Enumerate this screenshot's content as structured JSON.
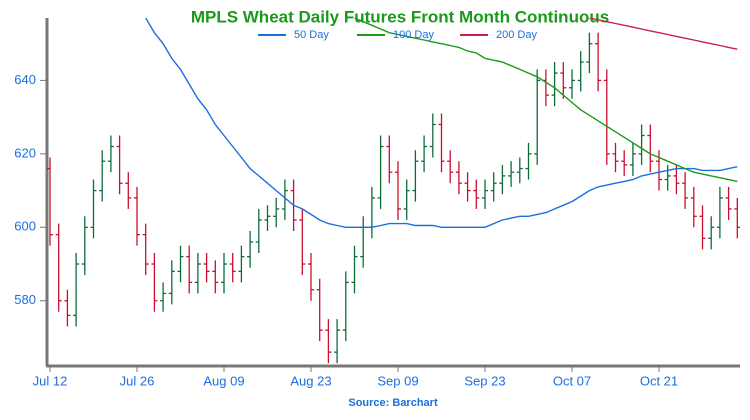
{
  "chart_data": {
    "type": "ohlc",
    "title": "MPLS Wheat Daily Futures Front Month Continuous",
    "source": "Source: Barchart",
    "categories": [
      "Jul 12",
      null,
      null,
      null,
      null,
      null,
      null,
      null,
      null,
      null,
      "Jul 26",
      null,
      null,
      null,
      null,
      null,
      null,
      null,
      null,
      null,
      "Aug 09",
      null,
      null,
      null,
      null,
      null,
      null,
      null,
      null,
      null,
      "Aug 23",
      null,
      null,
      null,
      null,
      null,
      null,
      null,
      null,
      null,
      "Sep 09",
      null,
      null,
      null,
      null,
      null,
      null,
      null,
      null,
      null,
      "Sep 23",
      null,
      null,
      null,
      null,
      null,
      null,
      null,
      null,
      null,
      "Oct 07",
      null,
      null,
      null,
      null,
      null,
      null,
      null,
      null,
      null,
      "Oct 21",
      null,
      null,
      null,
      null,
      null,
      null,
      null,
      null,
      null
    ],
    "open": [
      616,
      598,
      580,
      576,
      590,
      600,
      610,
      618,
      622,
      612,
      608,
      598,
      590,
      580,
      582,
      588,
      592,
      585,
      590,
      588,
      585,
      590,
      588,
      592,
      596,
      602,
      603,
      605,
      610,
      602,
      590,
      583,
      572,
      566,
      572,
      585,
      592,
      600,
      608,
      622,
      615,
      605,
      610,
      618,
      622,
      628,
      618,
      615,
      612,
      610,
      608,
      610,
      612,
      614,
      615,
      616,
      620,
      640,
      636,
      642,
      638,
      640,
      645,
      650,
      640,
      620,
      618,
      617,
      620,
      625,
      618,
      613,
      614,
      612,
      608,
      603,
      597,
      600,
      608,
      605
    ],
    "high": [
      619,
      601,
      583,
      593,
      603,
      613,
      621,
      625,
      625,
      615,
      611,
      601,
      593,
      585,
      591,
      595,
      595,
      593,
      593,
      591,
      593,
      593,
      595,
      599,
      605,
      606,
      608,
      613,
      613,
      605,
      593,
      586,
      575,
      575,
      588,
      595,
      603,
      611,
      625,
      625,
      618,
      613,
      621,
      625,
      631,
      631,
      621,
      618,
      615,
      613,
      613,
      615,
      617,
      618,
      619,
      623,
      643,
      643,
      645,
      645,
      643,
      648,
      653,
      653,
      643,
      623,
      621,
      623,
      628,
      628,
      621,
      617,
      617,
      615,
      611,
      606,
      603,
      611,
      611,
      608
    ],
    "low": [
      595,
      577,
      573,
      573,
      587,
      597,
      607,
      615,
      609,
      605,
      595,
      587,
      577,
      577,
      579,
      585,
      582,
      582,
      585,
      582,
      582,
      585,
      585,
      589,
      593,
      599,
      600,
      602,
      599,
      587,
      580,
      569,
      563,
      563,
      569,
      582,
      589,
      597,
      605,
      612,
      602,
      602,
      607,
      615,
      619,
      615,
      612,
      609,
      607,
      605,
      605,
      607,
      609,
      611,
      612,
      613,
      617,
      633,
      633,
      635,
      635,
      637,
      642,
      637,
      617,
      615,
      614,
      614,
      617,
      615,
      610,
      610,
      609,
      605,
      600,
      594,
      594,
      597,
      602,
      597
    ],
    "close": [
      598,
      580,
      576,
      590,
      600,
      610,
      618,
      622,
      612,
      608,
      598,
      590,
      580,
      582,
      588,
      592,
      585,
      590,
      588,
      585,
      590,
      588,
      592,
      596,
      602,
      603,
      605,
      610,
      602,
      590,
      583,
      572,
      566,
      572,
      585,
      592,
      600,
      608,
      622,
      615,
      605,
      610,
      618,
      622,
      628,
      618,
      615,
      612,
      610,
      608,
      610,
      612,
      614,
      615,
      616,
      620,
      640,
      636,
      642,
      638,
      640,
      645,
      650,
      640,
      620,
      618,
      617,
      620,
      625,
      618,
      613,
      614,
      612,
      608,
      603,
      597,
      600,
      608,
      605,
      600
    ],
    "up_color": "#0d6b3a",
    "down_color": "#c8102e",
    "series": [
      {
        "name": "50 Day",
        "color": "#1a6fe0",
        "values": [
          null,
          null,
          null,
          null,
          null,
          null,
          null,
          null,
          null,
          null,
          null,
          657,
          653,
          650,
          646,
          643,
          639,
          635,
          632,
          628,
          625,
          622,
          619,
          616,
          614,
          612,
          610,
          608,
          606,
          605,
          603.5,
          602,
          601,
          600.5,
          600,
          600,
          600,
          600,
          600.5,
          601,
          601,
          601,
          600.5,
          600.5,
          600.5,
          600,
          600,
          600,
          600,
          600,
          600,
          601,
          602,
          602.5,
          603,
          603,
          603.5,
          604,
          605,
          606,
          607,
          608.5,
          610,
          611,
          611.5,
          612,
          612.5,
          613,
          614,
          614.5,
          615,
          615.5,
          616,
          616,
          616,
          615.5,
          615.5,
          615.5,
          616,
          616.5
        ]
      },
      {
        "name": "100 Day",
        "color": "#1a9a1a",
        "values": [
          null,
          null,
          null,
          null,
          null,
          null,
          null,
          null,
          null,
          null,
          null,
          null,
          null,
          null,
          null,
          null,
          null,
          null,
          null,
          null,
          null,
          null,
          null,
          null,
          null,
          null,
          null,
          null,
          null,
          null,
          null,
          null,
          null,
          null,
          null,
          657,
          656,
          655,
          654,
          653,
          652.5,
          652,
          651.5,
          651,
          650.5,
          650,
          649.5,
          649,
          648,
          647.5,
          646,
          645.5,
          645,
          644,
          643,
          642,
          641,
          639.5,
          638,
          636,
          634,
          632,
          630.5,
          629,
          627.5,
          626,
          624.5,
          623,
          621.5,
          620,
          619,
          618,
          617,
          616,
          615,
          614.5,
          614,
          613.5,
          613,
          612.5
        ]
      },
      {
        "name": "200 Day",
        "color": "#c8204a",
        "values": [
          null,
          null,
          null,
          null,
          null,
          null,
          null,
          null,
          null,
          null,
          null,
          null,
          null,
          null,
          null,
          null,
          null,
          null,
          null,
          null,
          null,
          null,
          null,
          null,
          null,
          null,
          null,
          null,
          null,
          null,
          null,
          null,
          null,
          null,
          null,
          null,
          null,
          null,
          null,
          null,
          null,
          null,
          null,
          null,
          null,
          null,
          null,
          null,
          null,
          null,
          null,
          null,
          null,
          null,
          null,
          null,
          null,
          null,
          null,
          null,
          null,
          null,
          657,
          656.5,
          656,
          655.5,
          655,
          654.5,
          654,
          653.5,
          653,
          652.5,
          652,
          651.5,
          651,
          650.5,
          650,
          649.5,
          649,
          648.5
        ]
      }
    ],
    "ylim": [
      562.5,
      657
    ],
    "yticks": [
      580,
      600,
      620,
      640
    ]
  }
}
